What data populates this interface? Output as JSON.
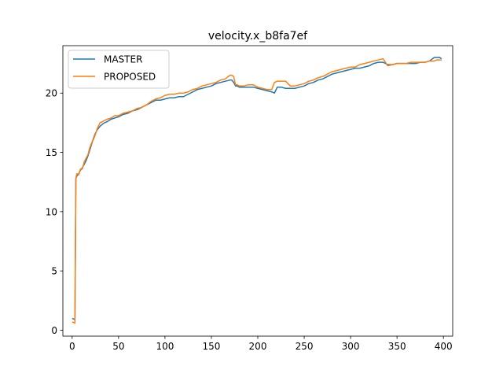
{
  "chart_data": {
    "type": "line",
    "title": "velocity.x_b8fa7ef",
    "xlabel": "",
    "ylabel": "",
    "xlim": [
      -10,
      410
    ],
    "ylim": [
      -0.5,
      24
    ],
    "xticks": [
      0,
      50,
      100,
      150,
      200,
      250,
      300,
      350,
      400
    ],
    "yticks": [
      0,
      5,
      10,
      15,
      20
    ],
    "grid": false,
    "legend": "top-left",
    "series": [
      {
        "name": "MASTER",
        "color": "#1f77b4",
        "x": [
          0,
          3,
          4,
          5,
          7,
          9,
          11,
          13,
          15,
          17,
          19,
          21,
          23,
          25,
          27,
          30,
          33,
          35,
          38,
          42,
          46,
          50,
          55,
          60,
          65,
          70,
          75,
          80,
          85,
          90,
          95,
          100,
          105,
          110,
          115,
          120,
          125,
          130,
          135,
          140,
          145,
          150,
          155,
          160,
          165,
          170,
          172,
          174,
          176,
          178,
          180,
          185,
          190,
          195,
          200,
          205,
          210,
          215,
          218,
          221,
          225,
          230,
          235,
          240,
          245,
          250,
          255,
          260,
          265,
          270,
          275,
          280,
          285,
          290,
          295,
          300,
          305,
          310,
          315,
          320,
          325,
          330,
          335,
          340,
          345,
          350,
          355,
          360,
          365,
          370,
          375,
          380,
          385,
          390,
          393,
          396,
          398
        ],
        "y": [
          1.0,
          0.9,
          12.8,
          13.0,
          13.2,
          13.5,
          13.7,
          14.0,
          14.3,
          14.7,
          15.2,
          15.7,
          16.2,
          16.6,
          16.9,
          17.2,
          17.4,
          17.5,
          17.6,
          17.8,
          17.9,
          18.0,
          18.2,
          18.3,
          18.5,
          18.6,
          18.8,
          19.0,
          19.2,
          19.4,
          19.4,
          19.5,
          19.6,
          19.6,
          19.7,
          19.7,
          19.9,
          20.1,
          20.3,
          20.4,
          20.5,
          20.6,
          20.8,
          20.9,
          21.0,
          21.1,
          21.1,
          20.9,
          20.6,
          20.6,
          20.5,
          20.5,
          20.5,
          20.5,
          20.4,
          20.3,
          20.2,
          20.1,
          20.0,
          20.5,
          20.5,
          20.4,
          20.4,
          20.4,
          20.5,
          20.6,
          20.8,
          20.9,
          21.1,
          21.2,
          21.4,
          21.6,
          21.7,
          21.8,
          21.9,
          22.0,
          22.1,
          22.1,
          22.2,
          22.3,
          22.5,
          22.6,
          22.6,
          22.4,
          22.4,
          22.5,
          22.5,
          22.5,
          22.5,
          22.5,
          22.6,
          22.6,
          22.7,
          23.0,
          23.0,
          23.0,
          22.9
        ]
      },
      {
        "name": "PROPOSED",
        "color": "#ff7f0e",
        "x": [
          0,
          3,
          4,
          5,
          7,
          9,
          11,
          13,
          15,
          17,
          19,
          21,
          23,
          25,
          27,
          30,
          33,
          35,
          38,
          42,
          46,
          50,
          55,
          60,
          65,
          70,
          75,
          80,
          85,
          90,
          95,
          100,
          105,
          110,
          115,
          120,
          125,
          130,
          135,
          140,
          145,
          150,
          155,
          160,
          165,
          170,
          172,
          174,
          176,
          178,
          180,
          185,
          190,
          195,
          200,
          205,
          210,
          215,
          218,
          221,
          225,
          230,
          235,
          240,
          245,
          250,
          255,
          260,
          265,
          270,
          275,
          280,
          285,
          290,
          295,
          300,
          305,
          310,
          315,
          320,
          325,
          330,
          335,
          340,
          345,
          350,
          355,
          360,
          365,
          370,
          375,
          380,
          385,
          390,
          393,
          396,
          398
        ],
        "y": [
          0.7,
          0.6,
          12.8,
          13.2,
          13.1,
          13.6,
          13.6,
          14.2,
          14.5,
          14.8,
          15.4,
          15.8,
          16.1,
          16.5,
          17.0,
          17.5,
          17.6,
          17.7,
          17.8,
          17.9,
          18.1,
          18.1,
          18.3,
          18.4,
          18.5,
          18.7,
          18.8,
          19.0,
          19.3,
          19.5,
          19.6,
          19.8,
          19.9,
          19.9,
          20.0,
          20.0,
          20.1,
          20.3,
          20.4,
          20.6,
          20.7,
          20.8,
          20.9,
          21.1,
          21.2,
          21.5,
          21.5,
          21.4,
          20.7,
          20.7,
          20.6,
          20.6,
          20.7,
          20.7,
          20.5,
          20.4,
          20.3,
          20.3,
          20.9,
          21.0,
          21.0,
          21.0,
          20.6,
          20.6,
          20.7,
          20.8,
          21.0,
          21.1,
          21.3,
          21.4,
          21.6,
          21.8,
          21.9,
          22.0,
          22.1,
          22.2,
          22.2,
          22.4,
          22.5,
          22.6,
          22.7,
          22.8,
          22.9,
          22.3,
          22.4,
          22.5,
          22.5,
          22.5,
          22.6,
          22.6,
          22.6,
          22.6,
          22.7,
          22.7,
          22.8,
          22.8,
          22.8
        ]
      }
    ]
  }
}
